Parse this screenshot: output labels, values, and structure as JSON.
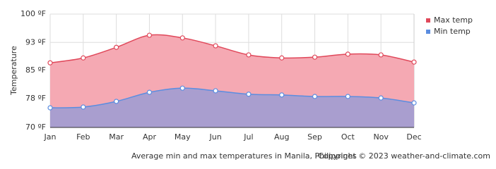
{
  "chart_data": {
    "type": "area",
    "y_label": "Temperature",
    "caption": "Average min and max temperatures in Manila, Philippines",
    "copyright": "Copyright © 2023  weather-and-climate.com",
    "categories": [
      "Jan",
      "Feb",
      "Mar",
      "Apr",
      "May",
      "Jun",
      "Jul",
      "Aug",
      "Sep",
      "Oct",
      "Nov",
      "Dec"
    ],
    "series": [
      {
        "name": "Max temp",
        "color": "#e0485a",
        "fill": "#f5a9b3",
        "values": [
          87.1,
          88.4,
          91.2,
          94.4,
          93.7,
          91.6,
          89.2,
          88.4,
          88.6,
          89.4,
          89.2,
          87.3
        ]
      },
      {
        "name": "Min temp",
        "color": "#5b8de0",
        "fill": "#a99ecf",
        "values": [
          75.2,
          75.4,
          76.9,
          79.3,
          80.4,
          79.7,
          78.8,
          78.6,
          78.2,
          78.2,
          77.8,
          76.5
        ]
      }
    ],
    "ylim": [
      70,
      100
    ],
    "yticks": [
      {
        "value": 70,
        "label": "70 ºF"
      },
      {
        "value": 77.6,
        "label": "78 ºF"
      },
      {
        "value": 85.1,
        "label": "85 ºF"
      },
      {
        "value": 92.5,
        "label": "93 ºF"
      },
      {
        "value": 100,
        "label": "100 ºF"
      }
    ],
    "grid": true,
    "legend": "right"
  }
}
